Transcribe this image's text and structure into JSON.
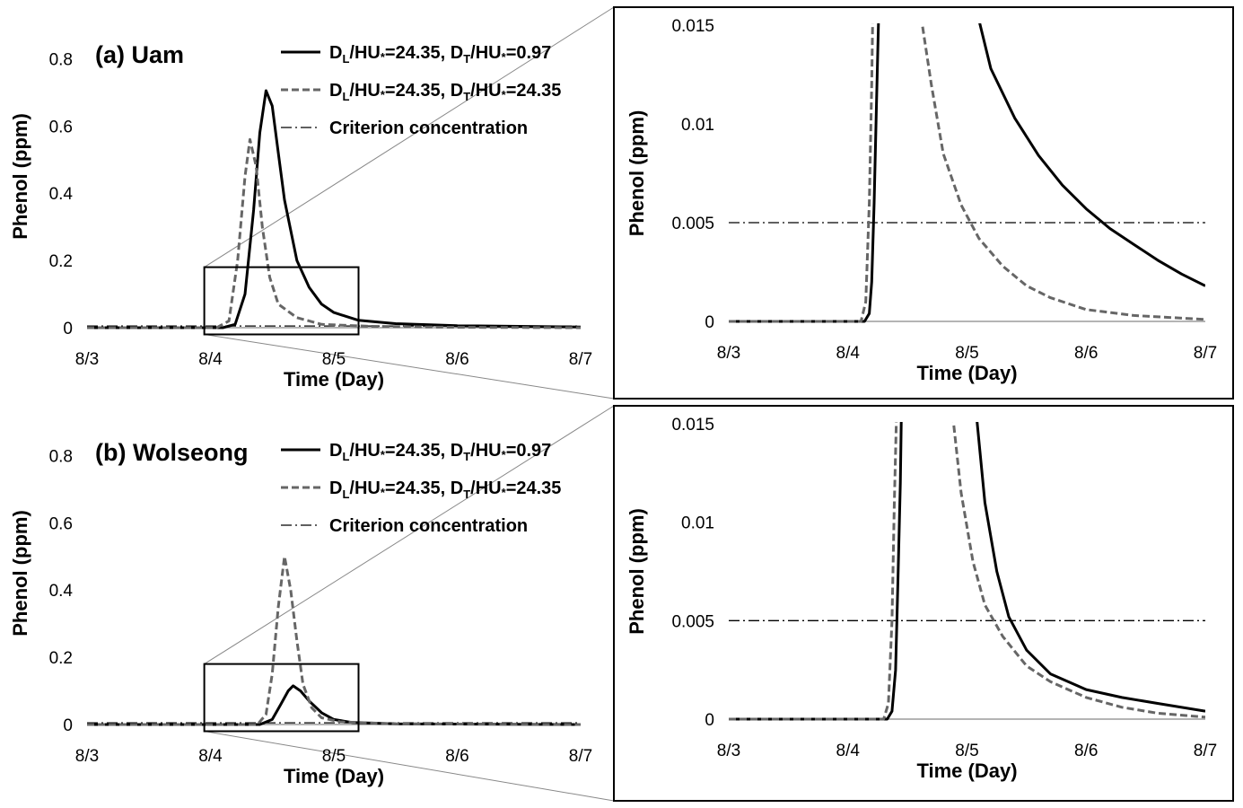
{
  "colors": {
    "solid": "#000000",
    "dashed": "#666666",
    "criterion": "#000000"
  },
  "chart_data": [
    {
      "id": "a-main",
      "type": "line",
      "title": "(a) Uam",
      "xlabel": "Time (Day)",
      "ylabel": "Phenol (ppm)",
      "x_ticks": [
        "8/3",
        "8/4",
        "8/5",
        "8/6",
        "8/7"
      ],
      "y_ticks": [
        "0",
        "0.2",
        "0.4",
        "0.6",
        "0.8"
      ],
      "x_range": [
        0,
        4
      ],
      "ylim": [
        0,
        0.9
      ],
      "legend": {
        "placement": "top-right",
        "entries": [
          {
            "style": "solid",
            "parts": [
              "D",
              "L",
              "/HU",
              "*",
              "=24.35, D",
              "T",
              "/HU",
              "*",
              "=0.97"
            ]
          },
          {
            "style": "dashed",
            "parts": [
              "D",
              "L",
              "/HU",
              "*",
              "=24.35, D",
              "T",
              "/HU",
              "*",
              "=24.35"
            ]
          },
          {
            "style": "dashdot",
            "label": "Criterion concentration"
          }
        ]
      },
      "series": [
        {
          "style": "solid",
          "points": [
            [
              0,
              0
            ],
            [
              1.1,
              0
            ],
            [
              1.2,
              0.01
            ],
            [
              1.28,
              0.1
            ],
            [
              1.35,
              0.35
            ],
            [
              1.4,
              0.58
            ],
            [
              1.45,
              0.705
            ],
            [
              1.5,
              0.66
            ],
            [
              1.55,
              0.52
            ],
            [
              1.6,
              0.38
            ],
            [
              1.7,
              0.2
            ],
            [
              1.8,
              0.12
            ],
            [
              1.9,
              0.07
            ],
            [
              2.0,
              0.045
            ],
            [
              2.2,
              0.022
            ],
            [
              2.5,
              0.012
            ],
            [
              3.0,
              0.006
            ],
            [
              4.0,
              0.002
            ]
          ]
        },
        {
          "style": "dashed",
          "points": [
            [
              0,
              0
            ],
            [
              1.05,
              0
            ],
            [
              1.15,
              0.02
            ],
            [
              1.22,
              0.2
            ],
            [
              1.28,
              0.45
            ],
            [
              1.32,
              0.56
            ],
            [
              1.37,
              0.48
            ],
            [
              1.42,
              0.3
            ],
            [
              1.48,
              0.15
            ],
            [
              1.55,
              0.07
            ],
            [
              1.7,
              0.03
            ],
            [
              1.9,
              0.01
            ],
            [
              2.3,
              0.004
            ],
            [
              3.0,
              0.001
            ],
            [
              4.0,
              0
            ]
          ]
        }
      ],
      "criterion": 0.005,
      "zoom_box": {
        "x": [
          0.95,
          2.2
        ],
        "y": [
          -0.02,
          0.18
        ]
      }
    },
    {
      "id": "a-zoom",
      "type": "line",
      "xlabel": "Time (Day)",
      "ylabel": "Phenol (ppm)",
      "x_ticks": [
        "8/3",
        "8/4",
        "8/5",
        "8/6",
        "8/7"
      ],
      "y_ticks": [
        "0",
        "0.005",
        "0.01",
        "0.015"
      ],
      "x_range": [
        0,
        4
      ],
      "ylim": [
        0,
        0.015
      ],
      "series": [
        {
          "style": "solid",
          "points": [
            [
              0,
              0
            ],
            [
              1.14,
              0
            ],
            [
              1.18,
              0.0004
            ],
            [
              1.2,
              0.002
            ],
            [
              1.22,
              0.006
            ],
            [
              1.24,
              0.011
            ],
            [
              1.26,
              0.016
            ]
          ]
        },
        {
          "style": "solid",
          "points": [
            [
              2.07,
              0.016
            ],
            [
              2.2,
              0.0128
            ],
            [
              2.4,
              0.0103
            ],
            [
              2.6,
              0.0084
            ],
            [
              2.8,
              0.0069
            ],
            [
              3.0,
              0.0057
            ],
            [
              3.2,
              0.0047
            ],
            [
              3.4,
              0.0039
            ],
            [
              3.6,
              0.0031
            ],
            [
              3.8,
              0.0024
            ],
            [
              4.0,
              0.0018
            ]
          ]
        },
        {
          "style": "dashed",
          "points": [
            [
              0,
              0
            ],
            [
              1.11,
              0
            ],
            [
              1.15,
              0.001
            ],
            [
              1.18,
              0.006
            ],
            [
              1.2,
              0.012
            ],
            [
              1.21,
              0.016
            ]
          ]
        },
        {
          "style": "dashed",
          "points": [
            [
              1.6,
              0.016
            ],
            [
              1.7,
              0.012
            ],
            [
              1.8,
              0.0085
            ],
            [
              1.95,
              0.0059
            ],
            [
              2.1,
              0.0042
            ],
            [
              2.3,
              0.0028
            ],
            [
              2.5,
              0.0018
            ],
            [
              2.7,
              0.0012
            ],
            [
              3.0,
              0.0006
            ],
            [
              3.4,
              0.0003
            ],
            [
              4.0,
              0.0001
            ]
          ]
        }
      ],
      "criterion": 0.005
    },
    {
      "id": "b-main",
      "type": "line",
      "title": "(b) Wolseong",
      "xlabel": "Time (Day)",
      "ylabel": "Phenol (ppm)",
      "x_ticks": [
        "8/3",
        "8/4",
        "8/5",
        "8/6",
        "8/7"
      ],
      "y_ticks": [
        "0",
        "0.2",
        "0.4",
        "0.6",
        "0.8"
      ],
      "x_range": [
        0,
        4
      ],
      "ylim": [
        0,
        0.9
      ],
      "legend": {
        "placement": "top-right",
        "entries": [
          {
            "style": "solid",
            "parts": [
              "D",
              "L",
              "/HU",
              "*",
              "=24.35, D",
              "T",
              "/HU",
              "*",
              "=0.97"
            ]
          },
          {
            "style": "dashed",
            "parts": [
              "D",
              "L",
              "/HU",
              "*",
              "=24.35, D",
              "T",
              "/HU",
              "*",
              "=24.35"
            ]
          },
          {
            "style": "dashdot",
            "label": "Criterion concentration"
          }
        ]
      },
      "series": [
        {
          "style": "solid",
          "points": [
            [
              0,
              0
            ],
            [
              1.4,
              0
            ],
            [
              1.5,
              0.015
            ],
            [
              1.57,
              0.06
            ],
            [
              1.63,
              0.1
            ],
            [
              1.67,
              0.115
            ],
            [
              1.73,
              0.1
            ],
            [
              1.8,
              0.07
            ],
            [
              1.9,
              0.035
            ],
            [
              2.0,
              0.015
            ],
            [
              2.15,
              0.006
            ],
            [
              2.5,
              0.002
            ],
            [
              4.0,
              0
            ]
          ]
        },
        {
          "style": "dashed",
          "points": [
            [
              0,
              0
            ],
            [
              1.38,
              0
            ],
            [
              1.45,
              0.03
            ],
            [
              1.5,
              0.15
            ],
            [
              1.55,
              0.35
            ],
            [
              1.6,
              0.5
            ],
            [
              1.65,
              0.4
            ],
            [
              1.7,
              0.25
            ],
            [
              1.75,
              0.12
            ],
            [
              1.82,
              0.05
            ],
            [
              1.9,
              0.02
            ],
            [
              2.05,
              0.008
            ],
            [
              2.5,
              0.002
            ],
            [
              4.0,
              0
            ]
          ]
        }
      ],
      "criterion": 0.005,
      "zoom_box": {
        "x": [
          0.95,
          2.2
        ],
        "y": [
          -0.02,
          0.18
        ]
      }
    },
    {
      "id": "b-zoom",
      "type": "line",
      "xlabel": "Time (Day)",
      "ylabel": "Phenol (ppm)",
      "x_ticks": [
        "8/3",
        "8/4",
        "8/5",
        "8/6",
        "8/7"
      ],
      "y_ticks": [
        "0",
        "0.005",
        "0.01",
        "0.015"
      ],
      "x_range": [
        0,
        4
      ],
      "ylim": [
        0,
        0.015
      ],
      "series": [
        {
          "style": "solid",
          "points": [
            [
              0,
              0
            ],
            [
              1.33,
              0
            ],
            [
              1.37,
              0.0004
            ],
            [
              1.4,
              0.0025
            ],
            [
              1.42,
              0.007
            ],
            [
              1.44,
              0.012
            ],
            [
              1.45,
              0.016
            ]
          ]
        },
        {
          "style": "solid",
          "points": [
            [
              2.07,
              0.016
            ],
            [
              2.15,
              0.011
            ],
            [
              2.25,
              0.0075
            ],
            [
              2.35,
              0.0052
            ],
            [
              2.5,
              0.0035
            ],
            [
              2.7,
              0.0023
            ],
            [
              3.0,
              0.0015
            ],
            [
              3.3,
              0.0011
            ],
            [
              3.6,
              0.0008
            ],
            [
              4.0,
              0.0004
            ]
          ]
        },
        {
          "style": "dashed",
          "points": [
            [
              0,
              0
            ],
            [
              1.3,
              0
            ],
            [
              1.34,
              0.0008
            ],
            [
              1.37,
              0.005
            ],
            [
              1.39,
              0.011
            ],
            [
              1.41,
              0.016
            ]
          ]
        },
        {
          "style": "dashed",
          "points": [
            [
              1.87,
              0.016
            ],
            [
              1.95,
              0.0115
            ],
            [
              2.05,
              0.008
            ],
            [
              2.15,
              0.0058
            ],
            [
              2.3,
              0.0042
            ],
            [
              2.5,
              0.0027
            ],
            [
              2.7,
              0.0019
            ],
            [
              3.0,
              0.0011
            ],
            [
              3.3,
              0.0006
            ],
            [
              3.6,
              0.0003
            ],
            [
              4.0,
              0.0001
            ]
          ]
        }
      ],
      "criterion": 0.005
    }
  ]
}
